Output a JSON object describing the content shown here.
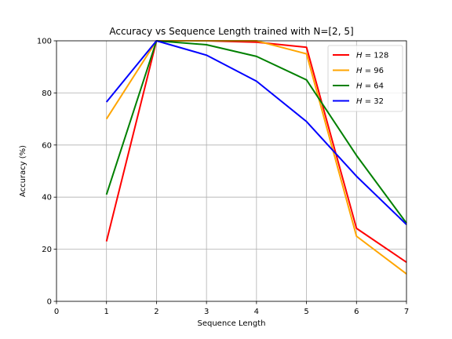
{
  "chart_data": {
    "type": "line",
    "title": "Accuracy vs Sequence Length trained with N=[2, 5]",
    "xlabel": "Sequence Length",
    "ylabel": "Accuracy (%)",
    "xlim": [
      0,
      7
    ],
    "ylim": [
      0,
      100
    ],
    "xticks": [
      0,
      1,
      2,
      3,
      4,
      5,
      6,
      7
    ],
    "yticks": [
      0,
      20,
      40,
      60,
      80,
      100
    ],
    "grid": true,
    "legend_position": "top-right",
    "x": [
      1,
      2,
      3,
      4,
      5,
      6,
      7
    ],
    "series": [
      {
        "name_prefix": "H",
        "name_suffix": " = 128",
        "color": "#ff0000",
        "values": [
          23,
          100,
          100,
          99.5,
          97.5,
          28,
          15
        ]
      },
      {
        "name_prefix": "H",
        "name_suffix": " = 96",
        "color": "#ffa500",
        "values": [
          70,
          100,
          100,
          100,
          95,
          25,
          10.5
        ]
      },
      {
        "name_prefix": "H",
        "name_suffix": " = 64",
        "color": "#008000",
        "values": [
          41,
          100,
          98.5,
          94,
          85,
          56,
          30
        ]
      },
      {
        "name_prefix": "H",
        "name_suffix": " = 32",
        "color": "#0000ff",
        "values": [
          76.5,
          100,
          94.5,
          84.5,
          69,
          48,
          29.5
        ]
      }
    ]
  }
}
